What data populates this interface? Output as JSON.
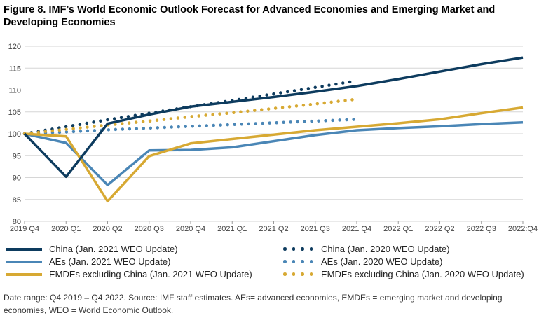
{
  "title": "Figure 8. IMF’s World Economic Outlook Forecast for Advanced Economies and Emerging Market and Developing Economies",
  "note": "Date range: Q4 2019 – Q4 2022. Source: IMF staff estimates. AEs= advanced economies, EMDEs = emerging market and developing economies, WEO = World Economic Outlook.",
  "colors": {
    "navy": "#0d3b5e",
    "blue": "#4a86b6",
    "gold": "#d7a933"
  },
  "chart_data": {
    "type": "line",
    "x": [
      "2019 Q4",
      "2020 Q1",
      "2020 Q2",
      "2020 Q3",
      "2020 Q4",
      "2021 Q1",
      "2021 Q2",
      "2021 Q3",
      "2021 Q4",
      "2022 Q1",
      "2022 Q2",
      "2022 Q3",
      "2022:Q4"
    ],
    "ylim": [
      80,
      120
    ],
    "yticks": [
      "80",
      "85",
      "90",
      "95",
      "100",
      "105",
      "110",
      "115",
      "120"
    ],
    "grid": true,
    "legend_position": "bottom",
    "series": [
      {
        "name": "China (Jan. 2021 WEO Update)",
        "color": "#0d3b5e",
        "style": "solid",
        "values": [
          100,
          90.2,
          102.3,
          104.4,
          106.2,
          107.3,
          108.4,
          109.6,
          110.9,
          112.5,
          114.2,
          115.9,
          117.4
        ]
      },
      {
        "name": "China (Jan. 2020 WEO Update)",
        "color": "#0d3b5e",
        "style": "dotted",
        "values": [
          100,
          101.6,
          103.2,
          104.7,
          106.2,
          107.6,
          109.1,
          110.6,
          112.1,
          null,
          null,
          null,
          null
        ]
      },
      {
        "name": "AEs (Jan. 2021 WEO Update)",
        "color": "#4a86b6",
        "style": "solid",
        "values": [
          100,
          97.9,
          88.3,
          96.2,
          96.3,
          96.9,
          98.3,
          99.7,
          100.8,
          101.3,
          101.7,
          102.2,
          102.6
        ]
      },
      {
        "name": "AEs (Jan. 2020 WEO Update)",
        "color": "#4a86b6",
        "style": "dotted",
        "values": [
          100,
          100.4,
          100.9,
          101.3,
          101.7,
          102.1,
          102.5,
          102.9,
          103.3,
          null,
          null,
          null,
          null
        ]
      },
      {
        "name": "EMDEs excluding China (Jan. 2021 WEO Update)",
        "color": "#d7a933",
        "style": "solid",
        "values": [
          100,
          99.4,
          84.6,
          94.9,
          97.8,
          98.8,
          99.8,
          100.8,
          101.6,
          102.4,
          103.3,
          104.7,
          106.0
        ]
      },
      {
        "name": "EMDEs excluding China (Jan. 2020 WEO Update)",
        "color": "#d7a933",
        "style": "dotted",
        "values": [
          100,
          101.0,
          102.0,
          102.9,
          103.9,
          104.8,
          105.8,
          106.8,
          107.9,
          null,
          null,
          null,
          null
        ]
      }
    ]
  }
}
